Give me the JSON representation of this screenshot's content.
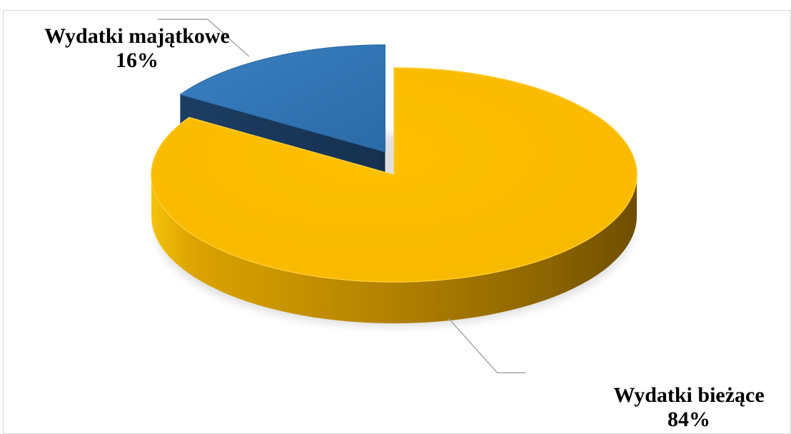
{
  "chart_data": {
    "type": "pie",
    "title": "",
    "three_d": true,
    "exploded_slice": "Wydatki majątkowe",
    "categories": [
      "Wydatki bieżące",
      "Wydatki majątkowe"
    ],
    "values": [
      84,
      16
    ],
    "value_unit": "%",
    "data_labels": [
      {
        "category": "Wydatki bieżące",
        "name": "Wydatki bieżące",
        "value": "84%"
      },
      {
        "category": "Wydatki majątkowe",
        "name": "Wydatki majątkowe",
        "value": "16%"
      }
    ],
    "colors": {
      "Wydatki bieżące": "#F7B900",
      "Wydatki majątkowe": "#2E75B6"
    },
    "legend": "none"
  }
}
